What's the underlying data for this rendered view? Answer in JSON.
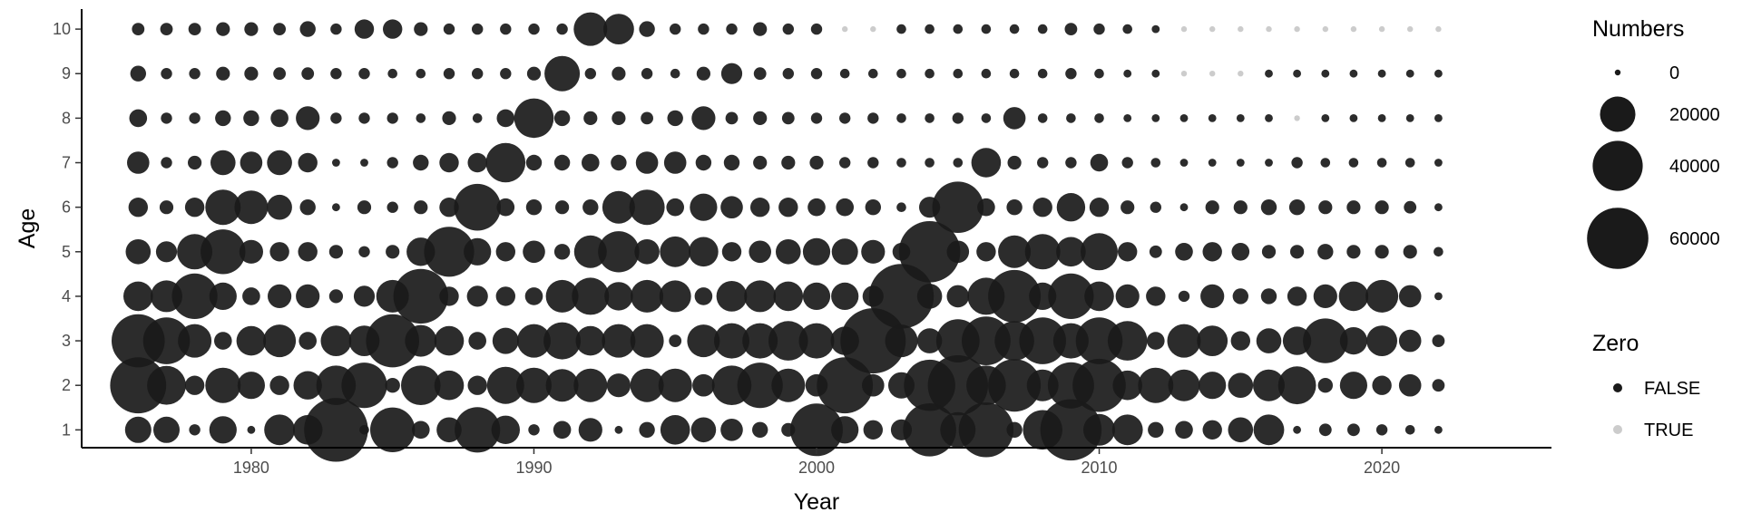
{
  "chart_data": {
    "type": "scatter",
    "title": "",
    "xlabel": "Year",
    "ylabel": "Age",
    "xlim": [
      1974,
      2026
    ],
    "ylim": [
      0.6,
      10.45
    ],
    "x_ticks": [
      1980,
      1990,
      2000,
      2010,
      2020
    ],
    "y_ticks": [
      1,
      2,
      3,
      4,
      5,
      6,
      7,
      8,
      9,
      10
    ],
    "grid": false,
    "legend_position": "right",
    "point_color_false": "#1a1a1a",
    "point_color_true": "#cccccc",
    "size_legend": {
      "title": "Numbers",
      "entries": [
        {
          "label": "0",
          "value": 0
        },
        {
          "label": "20000",
          "value": 20000
        },
        {
          "label": "40000",
          "value": 40000
        },
        {
          "label": "60000",
          "value": 60000
        }
      ]
    },
    "color_legend": {
      "title": "Zero",
      "entries": [
        {
          "label": "FALSE",
          "color": "#1a1a1a"
        },
        {
          "label": "TRUE",
          "color": "#cccccc"
        }
      ]
    },
    "years": [
      1976,
      1977,
      1978,
      1979,
      1980,
      1981,
      1982,
      1983,
      1984,
      1985,
      1986,
      1987,
      1988,
      1989,
      1990,
      1991,
      1992,
      1993,
      1994,
      1995,
      1996,
      1997,
      1998,
      1999,
      2000,
      2001,
      2002,
      2003,
      2004,
      2005,
      2006,
      2007,
      2008,
      2009,
      2010,
      2011,
      2012,
      2013,
      2014,
      2015,
      2016,
      2017,
      2018,
      2019,
      2020,
      2021,
      2022
    ],
    "zero_cells": [
      {
        "age": 10,
        "years": [
          2001,
          2002,
          2013,
          2014,
          2015,
          2016,
          2017,
          2018,
          2019,
          2020,
          2021,
          2022
        ]
      },
      {
        "age": 9,
        "years": [
          2013,
          2014,
          2015
        ]
      },
      {
        "age": 8,
        "years": [
          2017
        ]
      }
    ],
    "numbers_by_age": [
      {
        "age": 1,
        "values": [
          11000,
          11000,
          2000,
          12000,
          1000,
          15000,
          14000,
          65000,
          1500,
          32000,
          5000,
          10000,
          33000,
          13000,
          2000,
          5000,
          9000,
          1000,
          4000,
          14000,
          10000,
          8000,
          4000,
          3000,
          44000,
          12000,
          6000,
          7000,
          45000,
          20000,
          48000,
          4000,
          25000,
          60000,
          16000,
          15000,
          4000,
          5000,
          6000,
          10000,
          15000,
          1000,
          2500,
          2500,
          2000,
          1500,
          1000
        ]
      },
      {
        "age": 2,
        "values": [
          50000,
          24000,
          6000,
          20000,
          12000,
          6000,
          13000,
          25000,
          33000,
          3500,
          25000,
          14000,
          6000,
          22000,
          20000,
          17000,
          18000,
          9000,
          18000,
          18000,
          8000,
          25000,
          33000,
          18000,
          8000,
          50000,
          8000,
          11000,
          42000,
          58000,
          25000,
          44000,
          16000,
          34000,
          45000,
          14000,
          20000,
          16000,
          12000,
          10000,
          16000,
          23000,
          3500,
          12000,
          6000,
          8000,
          2500
        ]
      },
      {
        "age": 3,
        "values": [
          45000,
          35000,
          18000,
          5000,
          14000,
          17000,
          5000,
          15000,
          15000,
          45000,
          16000,
          14000,
          5000,
          11000,
          18000,
          22000,
          14000,
          18000,
          18000,
          2500,
          17000,
          20000,
          20000,
          25000,
          20000,
          13000,
          68000,
          17000,
          10000,
          30000,
          38000,
          25000,
          35000,
          20000,
          35000,
          25000,
          5000,
          18000,
          15000,
          6000,
          10000,
          13000,
          32000,
          12000,
          15000,
          8000,
          2500
        ]
      },
      {
        "age": 4,
        "values": [
          14000,
          16000,
          33000,
          12000,
          5000,
          9000,
          9000,
          3000,
          7000,
          17000,
          48000,
          6000,
          7000,
          6000,
          5000,
          17000,
          22000,
          13000,
          17000,
          16000,
          5000,
          15000,
          16000,
          14000,
          12000,
          12000,
          7000,
          67000,
          10000,
          8000,
          22000,
          44000,
          12000,
          33000,
          14000,
          9000,
          6000,
          2000,
          9000,
          4000,
          4000,
          6000,
          9000,
          14000,
          17000,
          8000,
          1000
        ]
      },
      {
        "age": 5,
        "values": [
          10000,
          7000,
          20000,
          32000,
          9000,
          6000,
          6000,
          3000,
          2000,
          3000,
          13000,
          40000,
          12000,
          6000,
          8000,
          4000,
          17000,
          27000,
          10000,
          15000,
          14000,
          6000,
          8000,
          10000,
          12000,
          11000,
          9000,
          5000,
          60000,
          8000,
          6000,
          17000,
          20000,
          14000,
          22000,
          6000,
          2500,
          5000,
          6000,
          5000,
          3000,
          3000,
          4000,
          3000,
          3000,
          3000,
          1500
        ]
      },
      {
        "age": 6,
        "values": [
          6000,
          3000,
          6000,
          20000,
          18000,
          10000,
          4000,
          1000,
          3000,
          2000,
          3000,
          6000,
          35000,
          5000,
          4000,
          3000,
          4000,
          17000,
          20000,
          5000,
          12000,
          8000,
          6000,
          6000,
          5000,
          5000,
          4000,
          1500,
          7000,
          42000,
          5000,
          4000,
          6000,
          13000,
          6000,
          3000,
          2000,
          1000,
          3000,
          3000,
          4000,
          4000,
          3000,
          3000,
          3000,
          2500,
          1000
        ]
      },
      {
        "age": 7,
        "values": [
          8000,
          2000,
          3000,
          10000,
          8000,
          10000,
          6000,
          1000,
          1000,
          2000,
          4000,
          6000,
          6000,
          25000,
          4000,
          4000,
          5000,
          4000,
          8000,
          8000,
          4000,
          4000,
          3000,
          3000,
          3000,
          2000,
          2000,
          1500,
          1500,
          1500,
          14000,
          3000,
          2000,
          2000,
          5000,
          2000,
          1500,
          1000,
          1000,
          1000,
          1000,
          2000,
          1500,
          1500,
          1500,
          1500,
          1000
        ]
      },
      {
        "age": 8,
        "values": [
          5000,
          2000,
          2000,
          4000,
          4000,
          5000,
          9000,
          2000,
          2000,
          2000,
          1500,
          3000,
          1500,
          5000,
          25000,
          4000,
          3000,
          3000,
          2500,
          4000,
          9000,
          2500,
          3000,
          2500,
          2000,
          2000,
          2000,
          1500,
          1500,
          2000,
          1500,
          8000,
          1500,
          1500,
          1500,
          1000,
          1000,
          1000,
          1000,
          1000,
          1000,
          0,
          1000,
          1000,
          1000,
          1000,
          1000
        ]
      },
      {
        "age": 9,
        "values": [
          4000,
          2000,
          2000,
          3000,
          3000,
          2500,
          2500,
          2000,
          2000,
          1500,
          1500,
          2000,
          2000,
          2000,
          3000,
          20000,
          2000,
          3000,
          2000,
          1500,
          3000,
          7000,
          2500,
          2000,
          2000,
          1500,
          1500,
          1500,
          1500,
          1500,
          1500,
          1500,
          1500,
          2000,
          1500,
          1000,
          1000,
          0,
          0,
          0,
          1000,
          1000,
          1000,
          1000,
          1000,
          1000,
          1000
        ]
      },
      {
        "age": 10,
        "values": [
          2500,
          2500,
          2500,
          3000,
          3000,
          2500,
          4000,
          2000,
          6000,
          6000,
          3000,
          2000,
          2000,
          2000,
          2000,
          2000,
          18000,
          15000,
          4000,
          2000,
          2000,
          2000,
          3000,
          2000,
          2000,
          0,
          0,
          1500,
          1500,
          1500,
          1500,
          1500,
          1500,
          2500,
          2000,
          1500,
          1000,
          0,
          0,
          0,
          0,
          0,
          0,
          0,
          0,
          0,
          0
        ]
      }
    ]
  }
}
